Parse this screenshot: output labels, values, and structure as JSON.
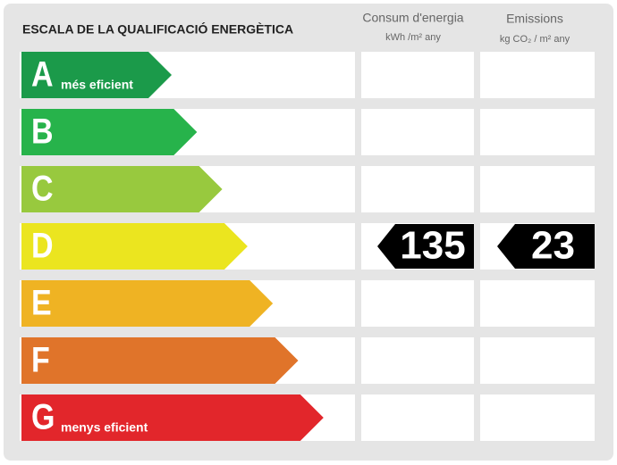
{
  "title": "ESCALA DE LA QUALIFICACIÓ ENERGÈTICA",
  "columns": [
    {
      "title": "Consum d'energia",
      "unit": "kWh /m² any"
    },
    {
      "title": "Emissions",
      "unit": "kg CO₂ / m² any"
    }
  ],
  "levels": [
    {
      "letter": "A",
      "label": "més eficient",
      "color": "#1b9a4a"
    },
    {
      "letter": "B",
      "color": "#27b34b"
    },
    {
      "letter": "C",
      "color": "#98c93e"
    },
    {
      "letter": "D",
      "color": "#ebe51f",
      "consumption": 135,
      "emissions": 23
    },
    {
      "letter": "E",
      "color": "#efb323"
    },
    {
      "letter": "F",
      "color": "#e0742a"
    },
    {
      "letter": "G",
      "label": "menys eficient",
      "color": "#e2262b"
    }
  ]
}
